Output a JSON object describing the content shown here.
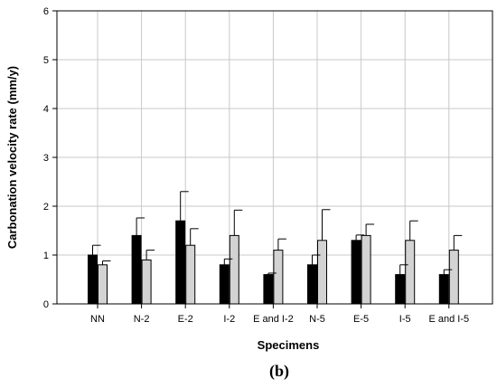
{
  "chart_data": {
    "type": "bar",
    "xlabel": "Specimens",
    "ylabel": "Carbonation velocity rate (mm/y)",
    "ylim": [
      0,
      6
    ],
    "yticks": [
      0,
      1,
      2,
      3,
      4,
      5,
      6
    ],
    "grid": true,
    "categories": [
      "NN",
      "N-2",
      "E-2",
      "I-2",
      "E and I-2",
      "N-5",
      "E-5",
      "I-5",
      "E and I-5"
    ],
    "series": [
      {
        "color": "#000000",
        "values": [
          1.0,
          1.4,
          1.7,
          0.8,
          0.6,
          0.8,
          1.3,
          0.6,
          0.6
        ],
        "errors": [
          0.2,
          0.36,
          0.6,
          0.12,
          0.03,
          0.2,
          0.11,
          0.2,
          0.1
        ]
      },
      {
        "color": "#d3d3d3",
        "values": [
          0.8,
          0.9,
          1.2,
          1.4,
          1.1,
          1.3,
          1.4,
          1.3,
          1.1
        ],
        "errors": [
          0.08,
          0.2,
          0.34,
          0.52,
          0.23,
          0.63,
          0.23,
          0.4,
          0.3
        ]
      }
    ]
  },
  "caption": "(b)"
}
